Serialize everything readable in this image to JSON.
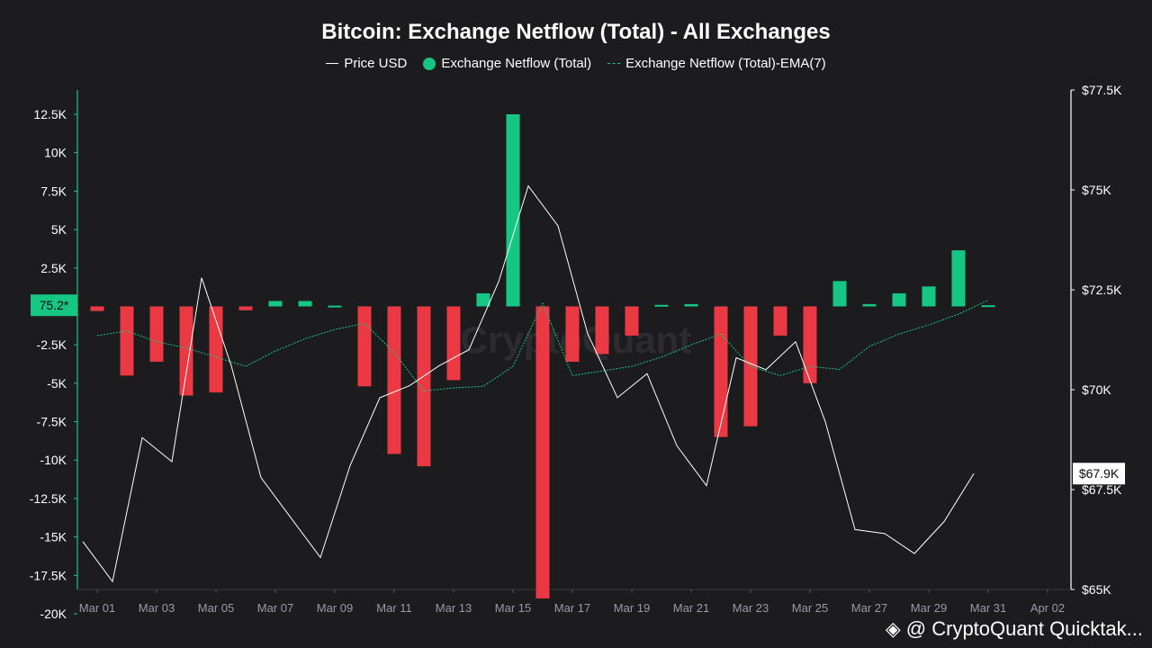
{
  "chart_data": {
    "type": "bar",
    "title": "Bitcoin: Exchange Netflow (Total) - All Exchanges",
    "legend": [
      {
        "name": "Price USD",
        "style": "line",
        "color": "#ffffff"
      },
      {
        "name": "Exchange Netflow (Total)",
        "style": "dot",
        "color": "#16c784"
      },
      {
        "name": "Exchange Netflow (Total)-EMA(7)",
        "style": "dashed",
        "color": "#16c784"
      }
    ],
    "legend_position": "top-center",
    "x_tick_labels": [
      "Mar 01",
      "Mar 03",
      "Mar 05",
      "Mar 07",
      "Mar 09",
      "Mar 11",
      "Mar 13",
      "Mar 15",
      "Mar 17",
      "Mar 19",
      "Mar 21",
      "Mar 23",
      "Mar 25",
      "Mar 27",
      "Mar 29",
      "Mar 31",
      "Apr 02"
    ],
    "dates": [
      "Mar 01",
      "Mar 02",
      "Mar 03",
      "Mar 04",
      "Mar 05",
      "Mar 06",
      "Mar 07",
      "Mar 08",
      "Mar 09",
      "Mar 10",
      "Mar 11",
      "Mar 12",
      "Mar 13",
      "Mar 14",
      "Mar 15",
      "Mar 16",
      "Mar 17",
      "Mar 18",
      "Mar 19",
      "Mar 20",
      "Mar 21",
      "Mar 22",
      "Mar 23",
      "Mar 24",
      "Mar 25",
      "Mar 26",
      "Mar 27",
      "Mar 28",
      "Mar 29",
      "Mar 30",
      "Mar 31"
    ],
    "netflow": [
      -300,
      -4500,
      -3600,
      -5800,
      -5600,
      -250,
      350,
      350,
      50,
      -5200,
      -9600,
      -10400,
      -4800,
      850,
      12500,
      -19000,
      -3600,
      -3100,
      -1900,
      100,
      150,
      -8500,
      -7800,
      -1900,
      -5000,
      1650,
      150,
      850,
      1300,
      3650,
      75
    ],
    "ema7": [
      -1900,
      -1600,
      -2300,
      -2700,
      -3300,
      -3900,
      -2900,
      -2100,
      -1500,
      -1100,
      -3000,
      -5500,
      -5300,
      -5200,
      -3900,
      200,
      -4500,
      -4200,
      -3900,
      -3300,
      -2500,
      -1800,
      -3900,
      -4500,
      -3900,
      -4100,
      -2600,
      -1800,
      -1200,
      -500,
      400
    ],
    "price": [
      66.2,
      65.2,
      68.8,
      68.2,
      72.8,
      70.6,
      67.8,
      66.8,
      65.8,
      68.1,
      69.8,
      70.1,
      70.6,
      71.0,
      72.7,
      75.1,
      74.1,
      71.4,
      69.8,
      70.4,
      68.6,
      67.6,
      70.8,
      70.5,
      71.2,
      69.2,
      66.5,
      66.4,
      65.9,
      66.7,
      67.9
    ],
    "y_left": {
      "min": -20000,
      "max": 12500,
      "ticks": [
        12500,
        10000,
        7500,
        5000,
        2500,
        0,
        -2500,
        -5000,
        -7500,
        -10000,
        -12500,
        -15000,
        -17500,
        -20000
      ],
      "tick_labels": [
        "12.5K",
        "10K",
        "7.5K",
        "5K",
        "2.5K",
        "",
        "-2.5K",
        "-5K",
        "-7.5K",
        "-10K",
        "-12.5K",
        "-15K",
        "-17.5K",
        "-20K"
      ]
    },
    "y_right": {
      "min": 65.0,
      "max": 77.5,
      "ticks": [
        77.5,
        75,
        72.5,
        70,
        67.5,
        65
      ],
      "tick_labels": [
        "$77.5K",
        "$75K",
        "$72.5K",
        "$70K",
        "$67.5K",
        "$65K"
      ]
    },
    "current_netflow_label": "75.2*",
    "current_price_label": "$67.9K",
    "colors": {
      "positive": "#16c784",
      "negative": "#ea3943",
      "price": "#ffffff",
      "ema": "#16c784",
      "background": "#1c1c1f"
    },
    "grid": false
  },
  "watermark": {
    "text": "CryptoQuant",
    "footer_text": "@ CryptoQuant Quicktak..."
  }
}
